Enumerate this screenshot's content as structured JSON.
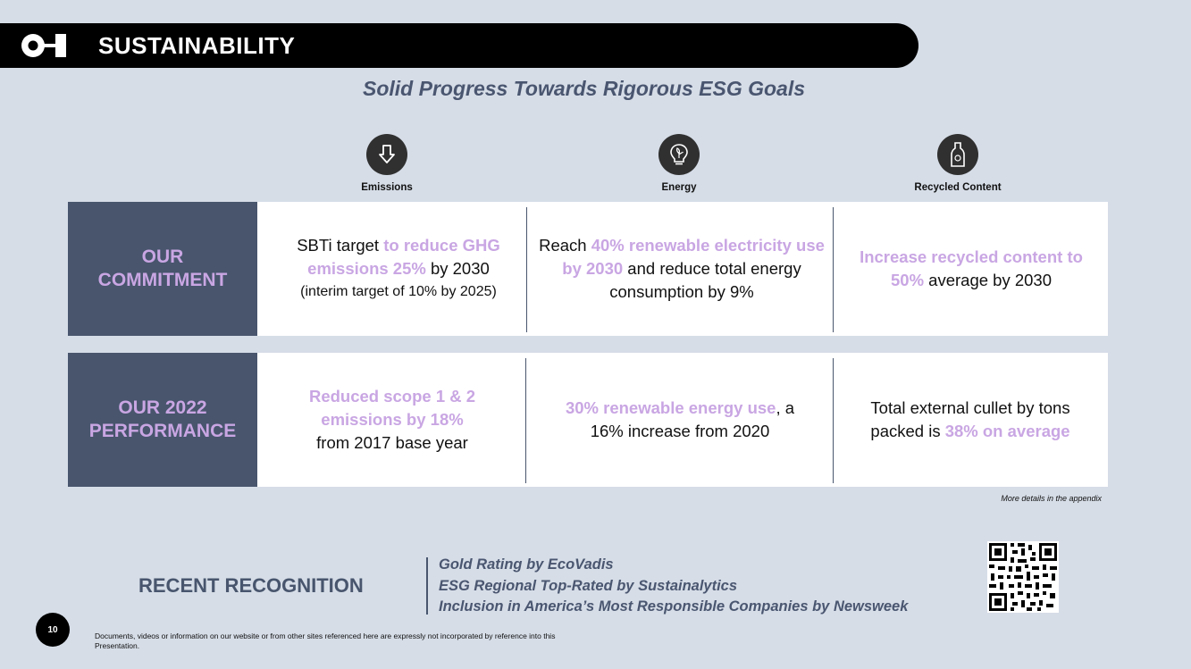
{
  "header": {
    "title": "SUSTAINABILITY"
  },
  "subtitle": "Solid Progress Towards Rigorous ESG Goals",
  "columns": [
    {
      "label": "Emissions",
      "icon": "arrow-down-icon"
    },
    {
      "label": "Energy",
      "icon": "lightbulb-leaf-icon"
    },
    {
      "label": "Recycled Content",
      "icon": "bottle-recycle-icon"
    }
  ],
  "commitment": {
    "label_line1": "OUR",
    "label_line2": "COMMITMENT",
    "emissions": {
      "pre": "SBTi target ",
      "hl": "to reduce GHG emissions 25%",
      "post": " by 2030",
      "note": "(interim target of 10% by 2025)"
    },
    "energy": {
      "pre": "Reach ",
      "hl": "40% renewable electricity use by 2030",
      "post": " and reduce total energy consumption by 9%"
    },
    "recycled": {
      "hl": "Increase recycled content to 50%",
      "post": " average by 2030"
    }
  },
  "performance": {
    "label_line1": "OUR 2022",
    "label_line2": "PERFORMANCE",
    "emissions": {
      "hl": "Reduced scope 1 & 2 emissions by 18%",
      "post": "from 2017 base year"
    },
    "energy": {
      "hl": "30% renewable energy use",
      "post": ", a 16% increase from 2020"
    },
    "recycled": {
      "pre": "Total external cullet by tons packed is ",
      "hl": "38% on average"
    }
  },
  "appendix_note": "More details in the appendix",
  "recognition": {
    "title": "RECENT RECOGNITION",
    "items": [
      "Gold Rating by EcoVadis",
      "ESG Regional Top-Rated by Sustainalytics",
      "Inclusion in America’s Most Responsible Companies by Newsweek"
    ]
  },
  "page_number": "10",
  "disclaimer": "Documents, videos or information on our website or from other sites referenced here are expressly not incorporated by reference into this Presentation.",
  "colors": {
    "background": "#d6dde7",
    "label_bg": "#48556d",
    "highlight": "#c9a6e3",
    "subtitle": "#4a5670"
  }
}
